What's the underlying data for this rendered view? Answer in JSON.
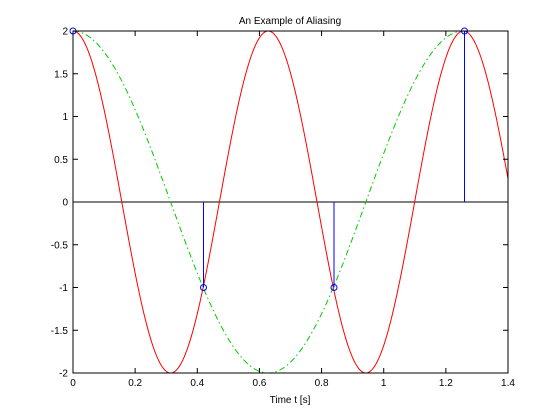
{
  "chart_data": {
    "type": "line",
    "title": "An Example of Aliasing",
    "xlabel": "Time t [s]",
    "ylabel": "",
    "xlim": [
      0,
      1.4
    ],
    "ylim": [
      -2,
      2
    ],
    "x_ticks": [
      0,
      0.2,
      0.4,
      0.6,
      0.8,
      1,
      1.2,
      1.4
    ],
    "x_tick_labels": [
      "0",
      "0.2",
      "0.4",
      "0.6",
      "0.8",
      "1",
      "1.2",
      "1.4"
    ],
    "y_ticks": [
      -2,
      -1.5,
      -1,
      -0.5,
      0,
      0.5,
      1,
      1.5,
      2
    ],
    "y_tick_labels": [
      "-2",
      "-1.5",
      "-1",
      "-0.5",
      "0",
      "0.5",
      "1",
      "1.5",
      "2"
    ],
    "series": [
      {
        "style": "solid",
        "color": "#ff0000",
        "formula": "2*cos(10*t)",
        "x_range": [
          0,
          1.4
        ]
      },
      {
        "style": "dash-dot",
        "color": "#00cc00",
        "formula": "2*cos(5*t)",
        "x_range": [
          0,
          1.26
        ]
      },
      {
        "style": "stem",
        "color": "#0000ff",
        "marker": "circle",
        "x": [
          0,
          0.42,
          0.84,
          1.26
        ],
        "y": [
          2,
          -1,
          -1,
          2
        ]
      }
    ],
    "baseline": {
      "y": 0,
      "color": "#000000"
    },
    "grid": false
  }
}
